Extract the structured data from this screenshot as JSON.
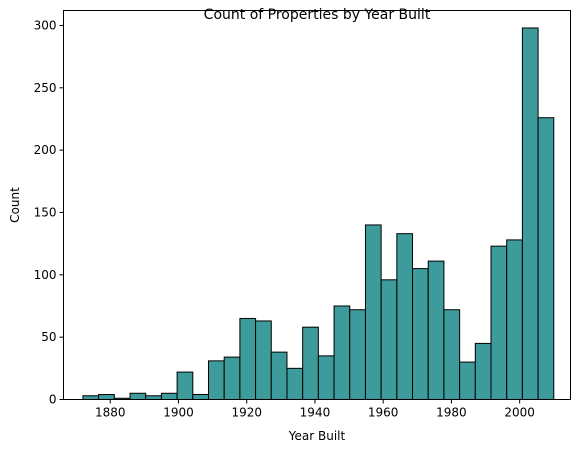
{
  "chart_data": {
    "type": "bar",
    "title": "Count of Properties by Year Built",
    "xlabel": "Year Built",
    "ylabel": "Count",
    "xlim": [
      1866.3,
      2014.9
    ],
    "ylim": [
      0,
      312
    ],
    "x_ticks": [
      1880,
      1900,
      1920,
      1940,
      1960,
      1980,
      2000
    ],
    "y_ticks": [
      0,
      50,
      100,
      150,
      200,
      250,
      300
    ],
    "bin_edges": [
      1872.0,
      1876.6,
      1881.2,
      1885.8,
      1890.4,
      1895.0,
      1899.6,
      1904.2,
      1908.8,
      1913.4,
      1918.0,
      1922.6,
      1927.2,
      1931.8,
      1936.4,
      1941.0,
      1945.6,
      1950.2,
      1954.8,
      1959.4,
      1964.0,
      1968.6,
      1973.2,
      1977.8,
      1982.4,
      1987.0,
      1991.6,
      1996.2,
      2000.8,
      2005.4,
      2010.0
    ],
    "counts": [
      3,
      4,
      1,
      5,
      3,
      5,
      22,
      4,
      31,
      34,
      65,
      63,
      38,
      25,
      58,
      35,
      75,
      72,
      140,
      96,
      133,
      105,
      111,
      72,
      30,
      45,
      123,
      128,
      298,
      226
    ],
    "bar_color": "#3d9b9b",
    "edge_color": "#000000",
    "grid": false
  }
}
